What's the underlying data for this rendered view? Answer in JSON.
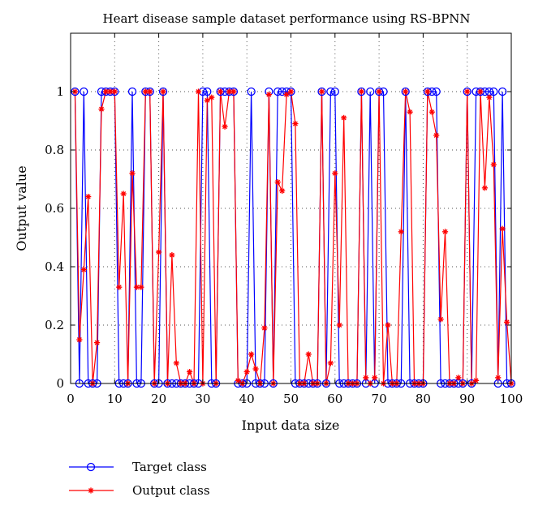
{
  "chart_data": {
    "type": "line",
    "title": "Heart disease sample dataset performance using RS-BPNN",
    "xlabel": "Input data size",
    "ylabel": "Output value",
    "xlim": [
      0,
      100
    ],
    "ylim": [
      0,
      1.2
    ],
    "xticks": [
      0,
      10,
      20,
      30,
      40,
      50,
      60,
      70,
      80,
      90,
      100
    ],
    "yticks": [
      0,
      0.2,
      0.4,
      0.6,
      0.8,
      1
    ],
    "grid": "dotted",
    "legend_position": "bottom-left",
    "series": [
      {
        "name": "Target class",
        "color": "#0000ff",
        "marker": "circle",
        "x": [
          1,
          2,
          3,
          4,
          5,
          6,
          7,
          8,
          9,
          10,
          11,
          12,
          13,
          14,
          15,
          16,
          17,
          18,
          19,
          20,
          21,
          22,
          23,
          24,
          25,
          26,
          27,
          28,
          29,
          30,
          31,
          32,
          33,
          34,
          35,
          36,
          37,
          38,
          39,
          40,
          41,
          42,
          43,
          44,
          45,
          46,
          47,
          48,
          49,
          50,
          51,
          52,
          53,
          54,
          55,
          56,
          57,
          58,
          59,
          60,
          61,
          62,
          63,
          64,
          65,
          66,
          67,
          68,
          69,
          70,
          71,
          72,
          73,
          74,
          75,
          76,
          77,
          78,
          79,
          80,
          81,
          82,
          83,
          84,
          85,
          86,
          87,
          88,
          89,
          90,
          91,
          92,
          93,
          94,
          95,
          96,
          97,
          98,
          99,
          100
        ],
        "values": [
          1,
          0,
          1,
          0,
          0,
          0,
          1,
          1,
          1,
          1,
          0,
          0,
          0,
          1,
          0,
          0,
          1,
          1,
          0,
          0,
          1,
          0,
          0,
          0,
          0,
          0,
          0,
          0,
          0,
          1,
          1,
          0,
          0,
          1,
          1,
          1,
          1,
          0,
          0,
          0,
          1,
          0,
          0,
          0,
          1,
          0,
          1,
          1,
          1,
          1,
          0,
          0,
          0,
          0,
          0,
          0,
          1,
          0,
          1,
          1,
          0,
          0,
          0,
          0,
          0,
          1,
          0,
          1,
          0,
          1,
          1,
          0,
          0,
          0,
          0,
          1,
          0,
          0,
          0,
          0,
          1,
          1,
          1,
          0,
          0,
          0,
          0,
          0,
          0,
          1,
          0,
          1,
          1,
          1,
          1,
          1,
          0,
          1,
          0,
          0
        ]
      },
      {
        "name": "Output class",
        "color": "#ff0000",
        "marker": "asterisk",
        "x": [
          1,
          2,
          3,
          4,
          5,
          6,
          7,
          8,
          9,
          10,
          11,
          12,
          13,
          14,
          15,
          16,
          17,
          18,
          19,
          20,
          21,
          22,
          23,
          24,
          25,
          26,
          27,
          28,
          29,
          30,
          31,
          32,
          33,
          34,
          35,
          36,
          37,
          38,
          39,
          40,
          41,
          42,
          43,
          44,
          45,
          46,
          47,
          48,
          49,
          50,
          51,
          52,
          53,
          54,
          55,
          56,
          57,
          58,
          59,
          60,
          61,
          62,
          63,
          64,
          65,
          66,
          67,
          68,
          69,
          70,
          71,
          72,
          73,
          74,
          75,
          76,
          77,
          78,
          79,
          80,
          81,
          82,
          83,
          84,
          85,
          86,
          87,
          88,
          89,
          90,
          91,
          92,
          93,
          94,
          95,
          96,
          97,
          98,
          99,
          100
        ],
        "values": [
          1,
          0.15,
          0.39,
          0.64,
          0,
          0.14,
          0.94,
          1,
          1,
          1,
          0.33,
          0.65,
          0,
          0.72,
          0.33,
          0.33,
          1,
          1,
          0,
          0.45,
          1,
          0,
          0.44,
          0.07,
          0,
          0,
          0.04,
          0,
          1,
          0,
          0.97,
          0.98,
          0,
          1,
          0.88,
          1,
          1,
          0.01,
          0,
          0.04,
          0.1,
          0.05,
          0,
          0.19,
          0.99,
          0,
          0.69,
          0.66,
          0.99,
          1,
          0.89,
          0,
          0,
          0.1,
          0,
          0,
          1,
          0,
          0.07,
          0.72,
          0.2,
          0.91,
          0,
          0,
          0,
          1,
          0.02,
          0,
          0.02,
          1,
          0,
          0.2,
          0,
          0,
          0.52,
          1,
          0.93,
          0,
          0,
          0,
          1,
          0.93,
          0.85,
          0.22,
          0.52,
          0,
          0,
          0.02,
          0,
          1,
          0,
          0.01,
          1,
          0.67,
          0.98,
          0.75,
          0.02,
          0.53,
          0.21,
          0
        ]
      }
    ]
  }
}
